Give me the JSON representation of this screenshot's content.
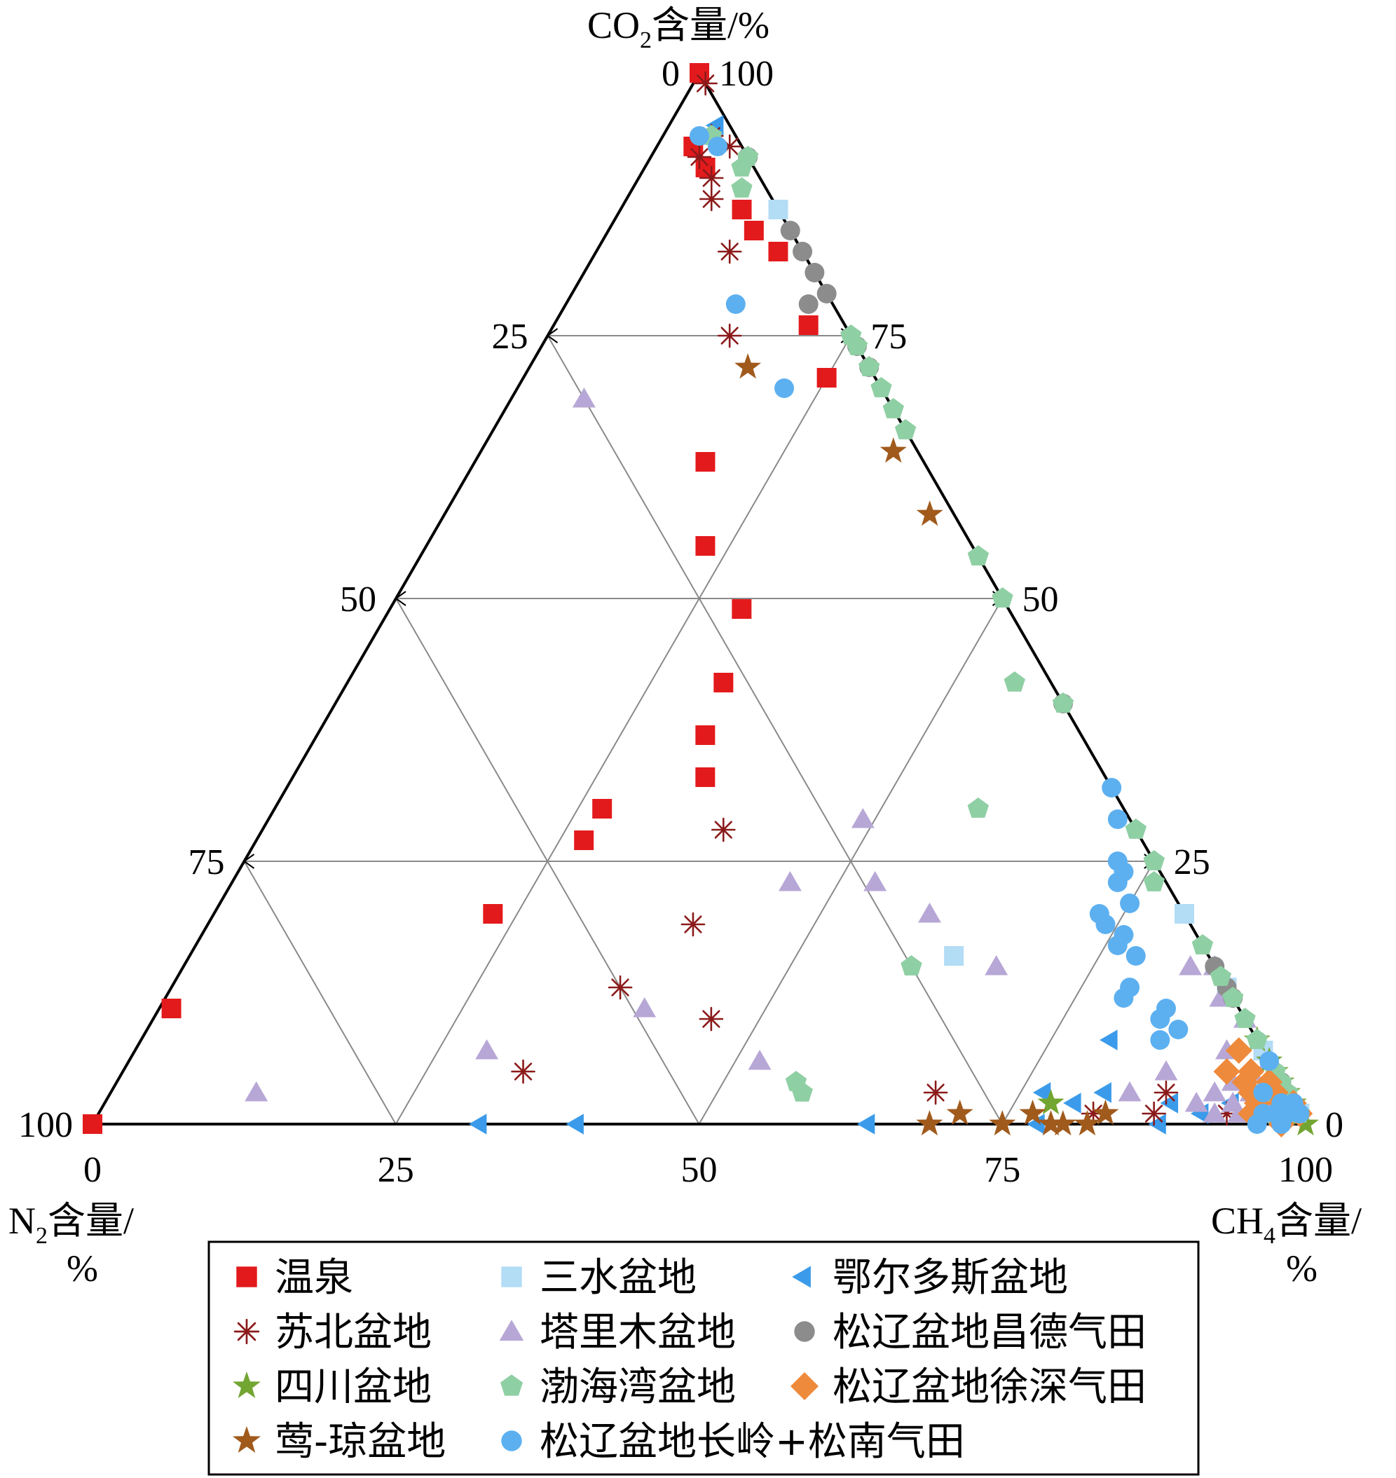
{
  "chart_data": {
    "type": "ternary-scatter",
    "axes": {
      "top": {
        "label_main": "CO",
        "label_sub": "2",
        "label_rest": "含量/%"
      },
      "left": {
        "label_main": "N",
        "label_sub": "2",
        "label_rest": "含量/",
        "label_line2": "%"
      },
      "right": {
        "label_main": "CH",
        "label_sub": "4",
        "label_rest": "含量/",
        "label_line2": "%"
      }
    },
    "ticks": {
      "bottom": [
        "0",
        "25",
        "50",
        "75",
        "100"
      ],
      "left": [
        "100",
        "75",
        "50",
        "25",
        "0"
      ],
      "right": [
        "0",
        "25",
        "50",
        "75",
        "100"
      ]
    },
    "grid": true,
    "legend": {
      "position": "bottom",
      "columns": 3
    },
    "series": [
      {
        "name": "温泉",
        "marker": "square",
        "color": "#e31a1c",
        "points": [
          [
            0,
            100,
            0
          ],
          [
            4,
            93,
            3
          ],
          [
            4,
            91,
            5
          ],
          [
            3,
            87,
            10
          ],
          [
            3,
            85,
            12
          ],
          [
            2,
            83,
            15
          ],
          [
            3,
            76,
            21
          ],
          [
            4,
            71,
            25
          ],
          [
            18,
            63,
            19
          ],
          [
            22,
            55,
            23
          ],
          [
            22,
            49,
            29
          ],
          [
            27,
            42,
            31
          ],
          [
            31,
            37,
            32
          ],
          [
            33,
            33,
            34
          ],
          [
            43,
            30,
            27
          ],
          [
            46,
            27,
            27
          ],
          [
            57,
            20,
            23
          ],
          [
            88,
            11,
            1
          ],
          [
            100,
            0,
            0
          ]
        ]
      },
      {
        "name": "三水盆地",
        "marker": "square",
        "color": "#b3dcf5",
        "points": [
          [
            0,
            87,
            13
          ],
          [
            0,
            20,
            80
          ],
          [
            0,
            13,
            87
          ],
          [
            0,
            7,
            93
          ],
          [
            0,
            1,
            99
          ],
          [
            3,
            2,
            95
          ],
          [
            2,
            3,
            95
          ],
          [
            21,
            16,
            63
          ]
        ]
      },
      {
        "name": "鄂尔多斯盆地",
        "marker": "triangle-left",
        "color": "#3b9bea",
        "points": [
          [
            1,
            95,
            4
          ],
          [
            36,
            0,
            64
          ],
          [
            60,
            0,
            40
          ],
          [
            68,
            0,
            32
          ],
          [
            22,
            0,
            78
          ],
          [
            18,
            2,
            80
          ],
          [
            12,
            8,
            80
          ],
          [
            20,
            3,
            77
          ],
          [
            15,
            3,
            82
          ],
          [
            10,
            2,
            88
          ],
          [
            5,
            2,
            93
          ],
          [
            3,
            1,
            96
          ],
          [
            2,
            1,
            97
          ],
          [
            8,
            1,
            91
          ],
          [
            12,
            0,
            88
          ]
        ]
      },
      {
        "name": "苏北盆地",
        "marker": "asterisk",
        "color": "#8b1a1a",
        "points": [
          [
            0,
            99,
            1
          ],
          [
            2,
            94,
            4
          ],
          [
            1,
            93,
            6
          ],
          [
            4,
            92,
            4
          ],
          [
            4,
            90,
            6
          ],
          [
            5,
            88,
            7
          ],
          [
            6,
            83,
            11
          ],
          [
            10,
            75,
            15
          ],
          [
            41,
            19,
            40
          ],
          [
            34,
            28,
            38
          ],
          [
            50,
            13,
            37
          ],
          [
            62,
            5,
            33
          ],
          [
            44,
            10,
            46
          ],
          [
            29,
            3,
            68
          ],
          [
            17,
            1,
            82
          ],
          [
            10,
            3,
            87
          ],
          [
            12,
            1,
            87
          ],
          [
            6,
            1,
            93
          ]
        ]
      },
      {
        "name": "塔里木盆地",
        "marker": "triangle-up",
        "color": "#b7a7d6",
        "points": [
          [
            85,
            3,
            12
          ],
          [
            64,
            7,
            29
          ],
          [
            49,
            11,
            40
          ],
          [
            42,
            6,
            52
          ],
          [
            31,
            23,
            46
          ],
          [
            22,
            29,
            49
          ],
          [
            24,
            23,
            53
          ],
          [
            21,
            20,
            59
          ],
          [
            18,
            15,
            67
          ],
          [
            13,
            3,
            84
          ],
          [
            9,
            5,
            86
          ],
          [
            5,
            2,
            93
          ],
          [
            6,
            3,
            91
          ],
          [
            7,
            1,
            92
          ],
          [
            3,
            7,
            90
          ],
          [
            0,
            2,
            98
          ],
          [
            2,
            2,
            96
          ],
          [
            5,
            1,
            94
          ],
          [
            4,
            4,
            92
          ],
          [
            0,
            15,
            85
          ],
          [
            0,
            4,
            96
          ],
          [
            0,
            10,
            90
          ],
          [
            3,
            3,
            94
          ],
          [
            0,
            6,
            94
          ],
          [
            1,
            3,
            96
          ],
          [
            2,
            15,
            83
          ],
          [
            1,
            12,
            87
          ],
          [
            2,
            5,
            93
          ],
          [
            8,
            2,
            90
          ],
          [
            25,
            69,
            6
          ]
        ]
      },
      {
        "name": "松辽盆地昌德气田",
        "marker": "circle",
        "color": "#8c8c8c",
        "points": [
          [
            0,
            85,
            15
          ],
          [
            0,
            83,
            17
          ],
          [
            0,
            81,
            19
          ],
          [
            0,
            79,
            21
          ],
          [
            2,
            78,
            20
          ],
          [
            0,
            74,
            26
          ],
          [
            0,
            72,
            28
          ],
          [
            0,
            40,
            60
          ],
          [
            0,
            15,
            85
          ],
          [
            0,
            13,
            87
          ],
          [
            0,
            12,
            88
          ],
          [
            0,
            4,
            96
          ],
          [
            0,
            1,
            99
          ],
          [
            3,
            1,
            96
          ],
          [
            1,
            1,
            98
          ],
          [
            0,
            92,
            8
          ],
          [
            3,
            1,
            96
          ]
        ]
      },
      {
        "name": "四川盆地",
        "marker": "star",
        "color": "#73a532",
        "points": [
          [
            0,
            8,
            92
          ],
          [
            20,
            2,
            78
          ],
          [
            0,
            5,
            95
          ],
          [
            0,
            3,
            97
          ],
          [
            0,
            4,
            96
          ],
          [
            3,
            2,
            95
          ],
          [
            0,
            6,
            94
          ],
          [
            1,
            1,
            98
          ],
          [
            0,
            2,
            98
          ],
          [
            0,
            0,
            100
          ]
        ]
      },
      {
        "name": "渤海湾盆地",
        "marker": "pentagon",
        "color": "#8fcfa4",
        "points": [
          [
            2,
            94,
            4
          ],
          [
            0,
            92,
            8
          ],
          [
            1,
            91,
            8
          ],
          [
            2,
            89,
            9
          ],
          [
            0,
            72,
            28
          ],
          [
            0,
            70,
            30
          ],
          [
            0,
            68,
            32
          ],
          [
            0,
            66,
            34
          ],
          [
            0,
            74,
            26
          ],
          [
            0,
            75,
            25
          ],
          [
            0,
            54,
            46
          ],
          [
            0,
            50,
            50
          ],
          [
            3,
            42,
            55
          ],
          [
            0,
            40,
            60
          ],
          [
            12,
            30,
            58
          ],
          [
            0,
            28,
            72
          ],
          [
            0,
            25,
            75
          ],
          [
            1,
            23,
            76
          ],
          [
            25,
            15,
            60
          ],
          [
            0,
            17,
            83
          ],
          [
            0,
            14,
            86
          ],
          [
            0,
            12,
            88
          ],
          [
            0,
            10,
            90
          ],
          [
            0,
            8,
            92
          ],
          [
            40,
            4,
            56
          ],
          [
            40,
            3,
            57
          ],
          [
            0,
            5,
            95
          ],
          [
            0,
            4,
            96
          ],
          [
            2,
            3,
            95
          ],
          [
            1,
            2,
            97
          ],
          [
            0,
            1,
            99
          ],
          [
            3,
            1,
            96
          ],
          [
            0,
            3,
            97
          ]
        ]
      },
      {
        "name": "松辽盆地徐深气田",
        "marker": "diamond",
        "color": "#ee8a3c",
        "points": [
          [
            2,
            7,
            91
          ],
          [
            4,
            5,
            91
          ],
          [
            1,
            4,
            95
          ],
          [
            3,
            4,
            93
          ],
          [
            2,
            3,
            95
          ],
          [
            1,
            2,
            97
          ],
          [
            0,
            2,
            98
          ],
          [
            3,
            2,
            95
          ],
          [
            2,
            1,
            97
          ],
          [
            1,
            1,
            98
          ],
          [
            0,
            1,
            99
          ],
          [
            2,
            0,
            98
          ],
          [
            4,
            1,
            95
          ],
          [
            1,
            3,
            96
          ],
          [
            3,
            3,
            94
          ],
          [
            2,
            5,
            93
          ]
        ]
      },
      {
        "name": "莺-琼盆地",
        "marker": "star",
        "color": "#a05a1c",
        "points": [
          [
            10,
            72,
            18
          ],
          [
            2,
            64,
            34
          ],
          [
            2,
            58,
            40
          ],
          [
            31,
            0,
            69
          ],
          [
            28,
            1,
            71
          ],
          [
            25,
            0,
            75
          ],
          [
            21,
            0,
            79
          ],
          [
            20,
            0,
            80
          ],
          [
            22,
            1,
            77
          ],
          [
            16,
            1,
            83
          ],
          [
            18,
            0,
            82
          ]
        ]
      },
      {
        "name": "松辽盆地长岭+松南气田",
        "marker": "circle",
        "color": "#5db0f0",
        "points": [
          [
            3,
            94,
            3
          ],
          [
            2,
            93,
            5
          ],
          [
            8,
            78,
            14
          ],
          [
            8,
            70,
            22
          ],
          [
            0,
            32,
            68
          ],
          [
            1,
            29,
            70
          ],
          [
            3,
            25,
            72
          ],
          [
            3,
            24,
            73
          ],
          [
            4,
            23,
            73
          ],
          [
            4,
            21,
            75
          ],
          [
            7,
            20,
            73
          ],
          [
            7,
            19,
            74
          ],
          [
            6,
            18,
            76
          ],
          [
            7,
            17,
            76
          ],
          [
            6,
            16,
            78
          ],
          [
            8,
            13,
            79
          ],
          [
            9,
            12,
            79
          ],
          [
            6,
            11,
            83
          ],
          [
            7,
            10,
            83
          ],
          [
            6,
            9,
            85
          ],
          [
            8,
            8,
            84
          ],
          [
            0,
            6,
            94
          ],
          [
            2,
            3,
            95
          ],
          [
            1,
            2,
            97
          ],
          [
            0,
            2,
            98
          ],
          [
            3,
            1,
            96
          ],
          [
            2,
            1,
            97
          ],
          [
            1,
            1,
            98
          ],
          [
            0,
            1,
            99
          ],
          [
            4,
            0,
            96
          ],
          [
            2,
            0,
            98
          ]
        ]
      }
    ]
  }
}
